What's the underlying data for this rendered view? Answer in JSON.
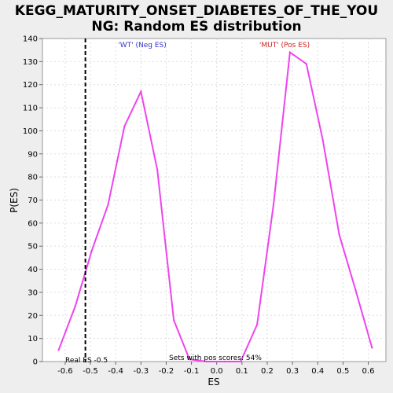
{
  "chart_data": {
    "type": "line",
    "title_line1": "KEGG_MATURITY_ONSET_DIABETES_OF_THE_YOU",
    "title_line2": "NG: Random ES distribution",
    "xlabel": "ES",
    "ylabel": "P(ES)",
    "xlim": [
      -0.69,
      0.67
    ],
    "ylim": [
      0,
      140
    ],
    "x_ticks": [
      -0.6,
      -0.5,
      -0.4,
      -0.3,
      -0.2,
      -0.1,
      0.0,
      0.1,
      0.2,
      0.3,
      0.4,
      0.5,
      0.6
    ],
    "x_tick_labels": [
      "-0.6",
      "-0.5",
      "-0.4",
      "-0.3",
      "-0.2",
      "-0.1",
      "0.0",
      "0.1",
      "0.2",
      "0.3",
      "0.4",
      "0.5",
      "0.6"
    ],
    "y_ticks": [
      0,
      10,
      20,
      30,
      40,
      50,
      60,
      70,
      80,
      90,
      100,
      110,
      120,
      130,
      140
    ],
    "grid": true,
    "line_color": "#ee44ee",
    "series": [
      {
        "values": [
          [
            -0.626,
            5
          ],
          [
            -0.56,
            24
          ],
          [
            -0.495,
            48
          ],
          [
            -0.43,
            68
          ],
          [
            -0.365,
            102
          ],
          [
            -0.3,
            117
          ],
          [
            -0.235,
            83
          ],
          [
            -0.17,
            18
          ],
          [
            -0.108,
            1
          ],
          [
            -0.04,
            0
          ],
          [
            0.03,
            0
          ],
          [
            0.095,
            0
          ],
          [
            0.16,
            16
          ],
          [
            0.225,
            68
          ],
          [
            0.29,
            134
          ],
          [
            0.355,
            129
          ],
          [
            0.42,
            96
          ],
          [
            0.485,
            55
          ],
          [
            0.55,
            31
          ],
          [
            0.615,
            6
          ]
        ]
      }
    ],
    "real_es": -0.52,
    "real_es_label": "Real ES -0.5",
    "neg_label": "'WT' (Neg ES)",
    "neg_color": "#3333cc",
    "pos_label": "'MUT' (Pos ES)",
    "pos_color": "#cc2222",
    "footer_text": "Sets with pos scores: 54%"
  }
}
